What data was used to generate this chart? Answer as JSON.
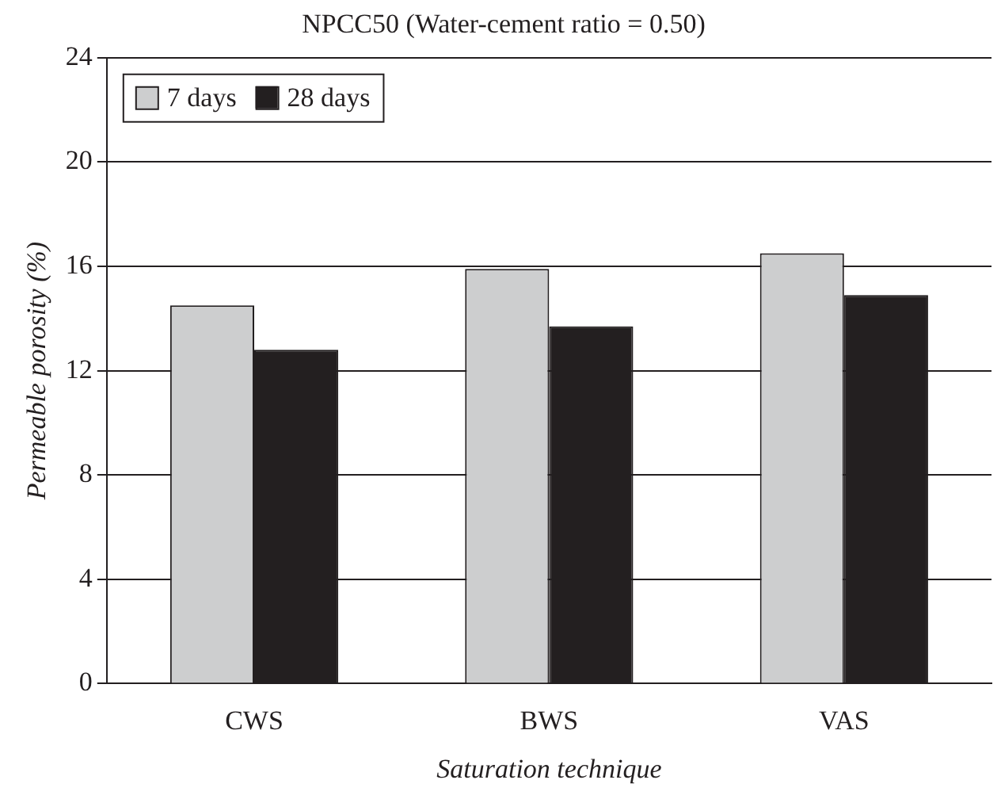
{
  "chart_data": {
    "type": "bar",
    "title": "NPCC50 (Water-cement ratio = 0.50)",
    "xlabel": "Saturation technique",
    "ylabel": "Permeable porosity (%)",
    "categories": [
      "CWS",
      "BWS",
      "VAS"
    ],
    "series": [
      {
        "name": "7 days",
        "color": "#cdcecf",
        "values": [
          14.5,
          15.9,
          16.5
        ]
      },
      {
        "name": "28 days",
        "color": "#231f20",
        "values": [
          12.8,
          13.7,
          14.9
        ]
      }
    ],
    "ylim": [
      0,
      24
    ],
    "yticks": [
      0,
      4,
      8,
      12,
      16,
      20,
      24
    ],
    "grid": "y",
    "legend": "top left"
  }
}
